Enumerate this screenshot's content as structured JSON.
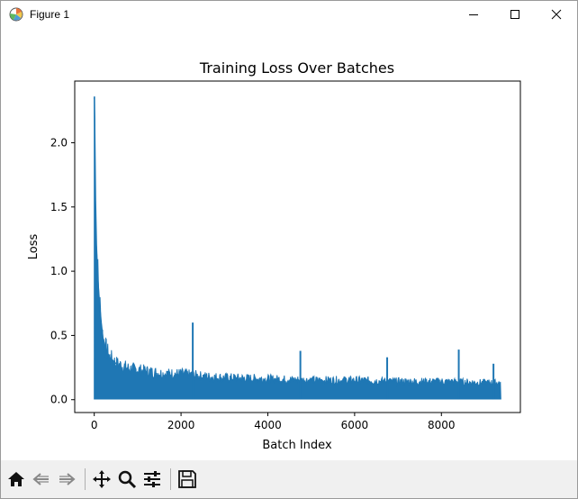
{
  "window": {
    "title": "Figure 1",
    "icons": [
      "matplotlib-icon",
      "minimize-icon",
      "maximize-icon",
      "close-icon"
    ]
  },
  "toolbar": {
    "buttons": [
      {
        "name": "home-button",
        "icon": "home-icon"
      },
      {
        "name": "back-button",
        "icon": "back-arrow-icon"
      },
      {
        "name": "forward-button",
        "icon": "forward-arrow-icon"
      },
      {
        "name": "pan-button",
        "icon": "move-icon"
      },
      {
        "name": "zoom-button",
        "icon": "magnifier-icon"
      },
      {
        "name": "configure-subplots-button",
        "icon": "sliders-icon"
      },
      {
        "name": "save-button",
        "icon": "floppy-disk-icon"
      }
    ]
  },
  "chart_data": {
    "type": "line",
    "title": "Training Loss Over Batches",
    "xlabel": "Batch Index",
    "ylabel": "Loss",
    "xlim": [
      -450,
      9820
    ],
    "ylim": [
      -0.1,
      2.48
    ],
    "xticks": [
      0,
      2000,
      4000,
      6000,
      8000
    ],
    "xtick_labels": [
      "0",
      "2000",
      "4000",
      "6000",
      "8000"
    ],
    "yticks": [
      0.0,
      0.5,
      1.0,
      1.5,
      2.0
    ],
    "ytick_labels": [
      "0.0",
      "0.5",
      "1.0",
      "1.5",
      "2.0"
    ],
    "grid": false,
    "line_color": "#1f77b4",
    "series": [
      {
        "x_start": 0,
        "x_end": 9370,
        "approx_points": [
          [
            0,
            2.34
          ],
          [
            5,
            2.36
          ],
          [
            15,
            2.0
          ],
          [
            30,
            1.55
          ],
          [
            50,
            1.2
          ],
          [
            80,
            0.95
          ],
          [
            120,
            0.75
          ],
          [
            160,
            0.6
          ],
          [
            200,
            0.48
          ],
          [
            260,
            0.4
          ],
          [
            350,
            0.33
          ],
          [
            500,
            0.28
          ],
          [
            800,
            0.24
          ],
          [
            1200,
            0.22
          ],
          [
            1600,
            0.2
          ],
          [
            2000,
            0.2
          ],
          [
            2500,
            0.18
          ],
          [
            3000,
            0.17
          ],
          [
            4000,
            0.16
          ],
          [
            5000,
            0.15
          ],
          [
            6000,
            0.15
          ],
          [
            7000,
            0.14
          ],
          [
            8000,
            0.14
          ],
          [
            9000,
            0.13
          ],
          [
            9370,
            0.13
          ]
        ],
        "spikes": [
          [
            2270,
            0.6
          ],
          [
            4750,
            0.38
          ],
          [
            8400,
            0.39
          ],
          [
            6750,
            0.33
          ],
          [
            9200,
            0.28
          ]
        ],
        "floor": 0.005
      }
    ]
  }
}
